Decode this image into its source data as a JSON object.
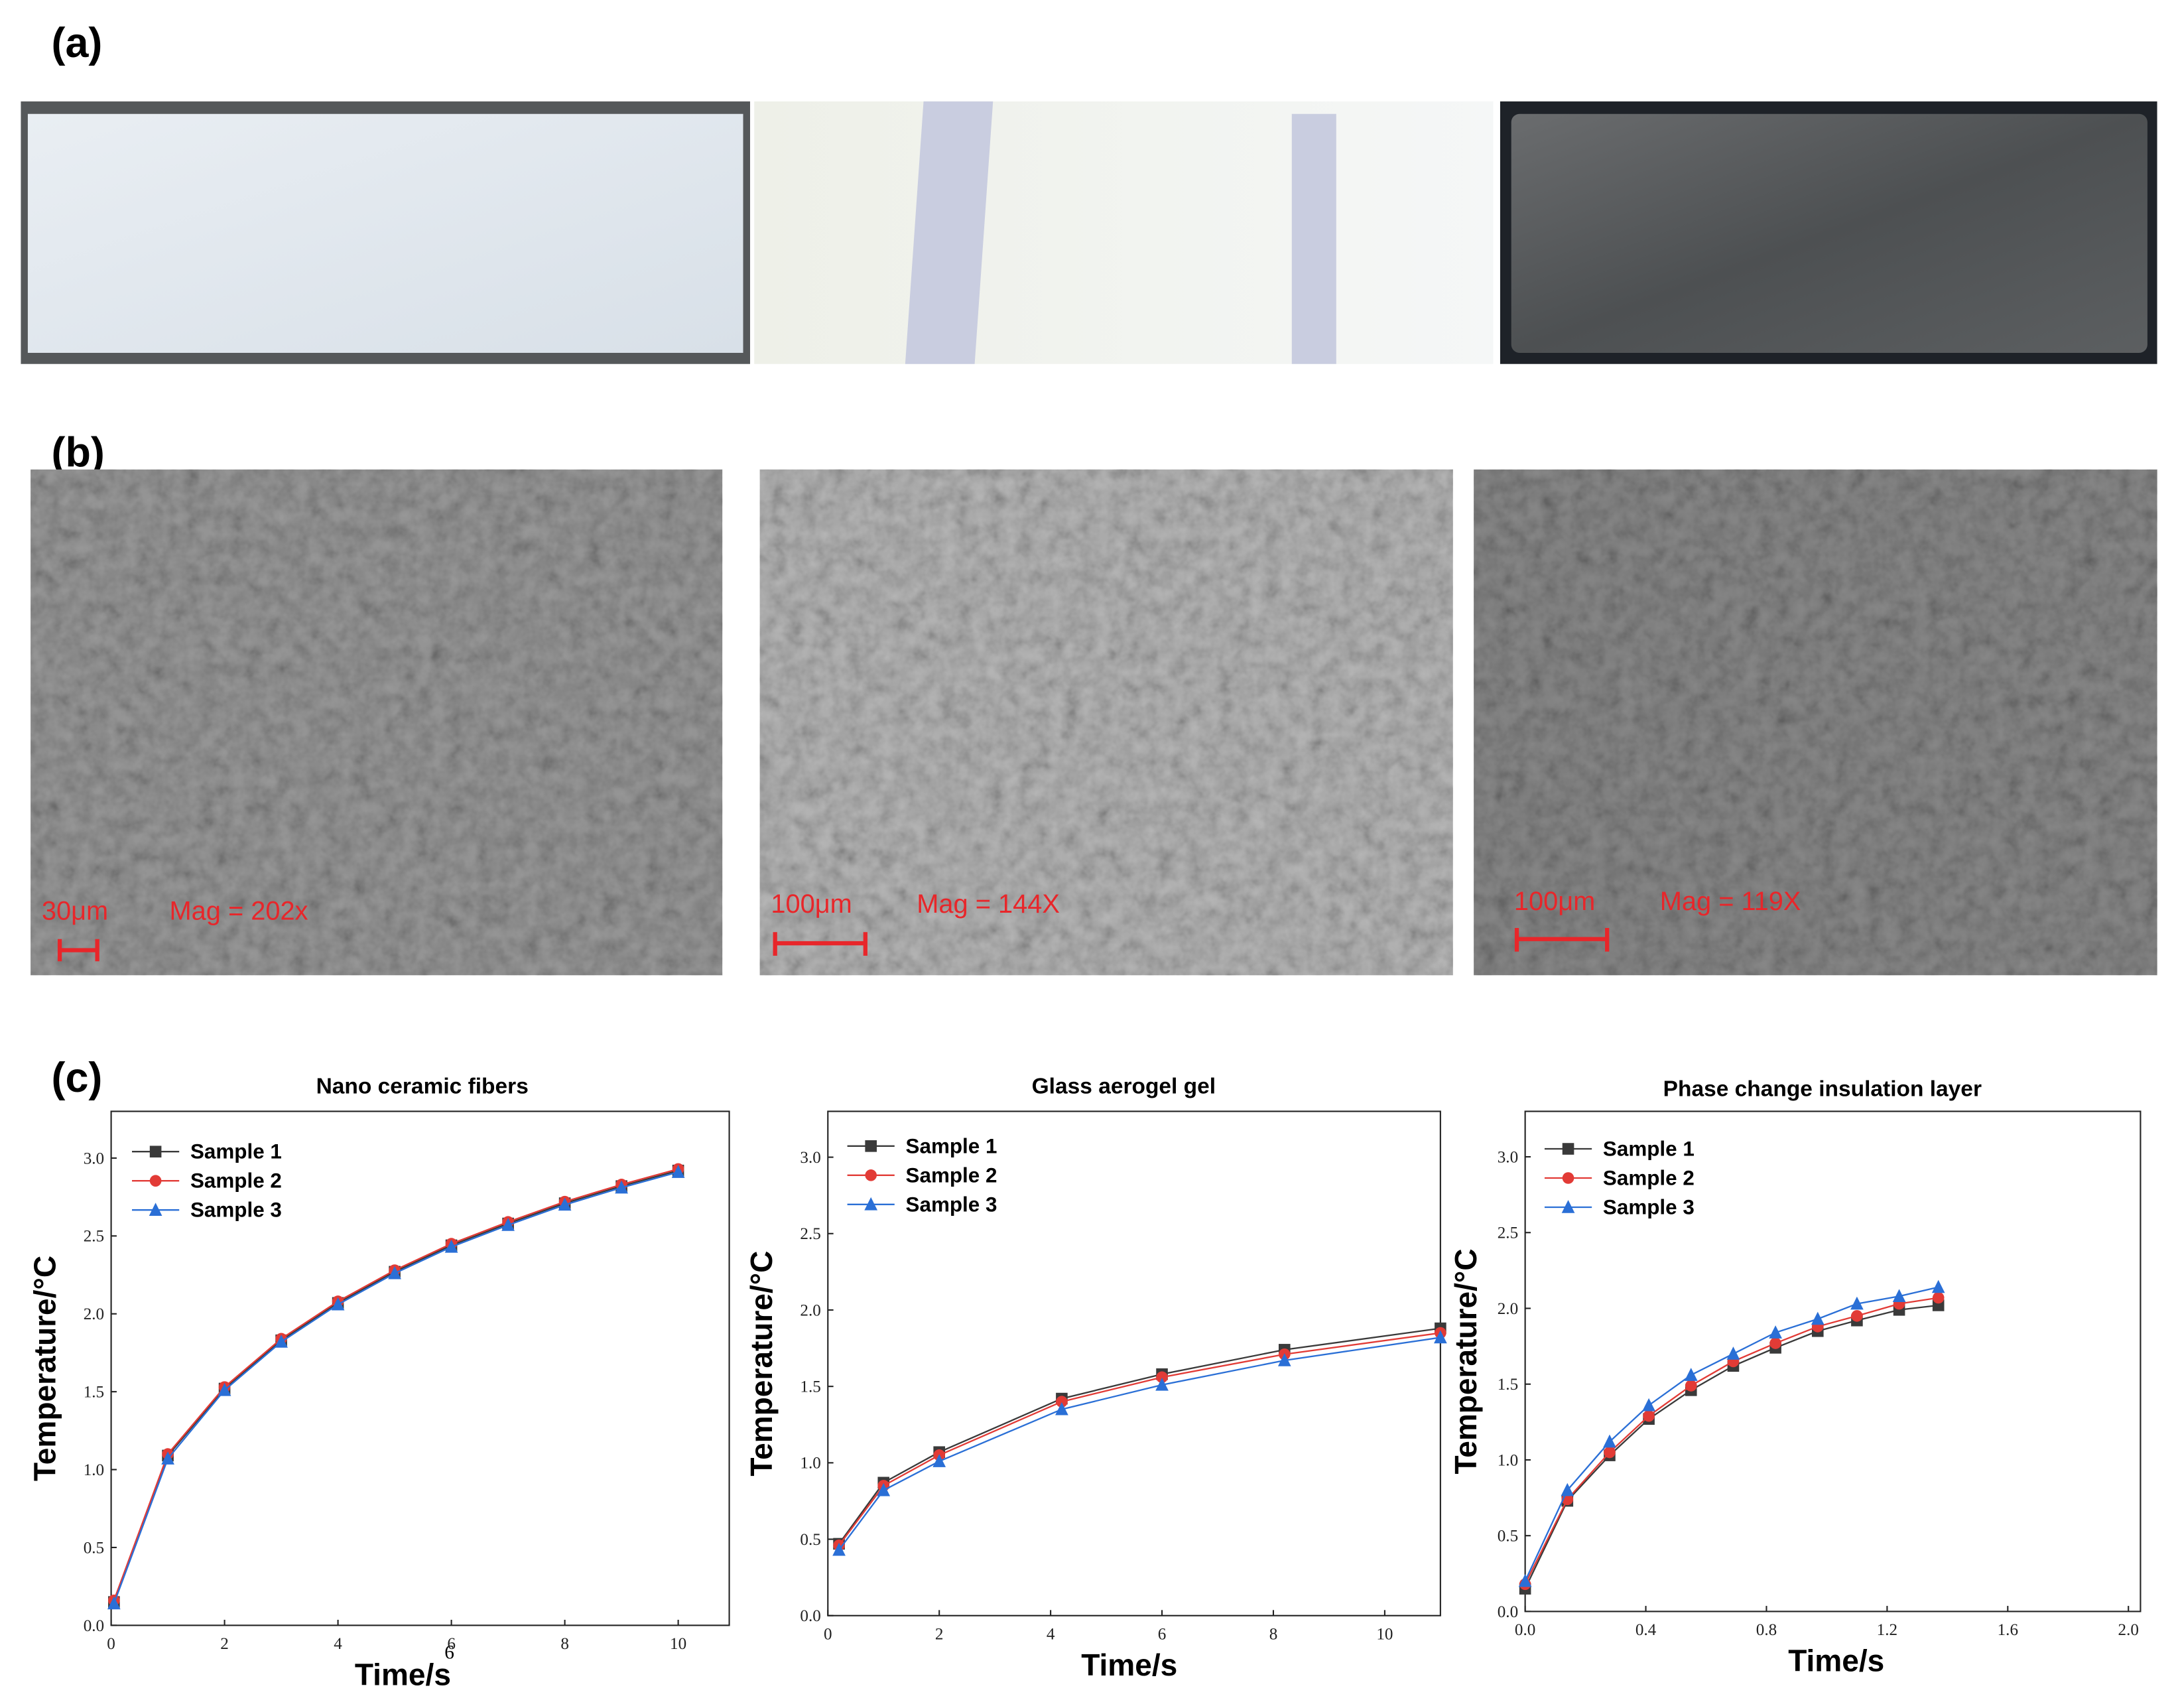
{
  "panels": {
    "a": "(a)",
    "b": "(b)",
    "c": "(c)"
  },
  "sem": [
    {
      "scale": "30μm",
      "mag": "Mag = 202x"
    },
    {
      "scale": "100μm",
      "mag": "Mag = 144X"
    },
    {
      "scale": "100μm",
      "mag": "Mag = 119X"
    }
  ],
  "footnote_mark": "6",
  "chart_data": [
    {
      "type": "line",
      "title": "Nano ceramic fibers",
      "x_label": "Time/s",
      "y_label": "Temperature/°C",
      "x": [
        0.05,
        1,
        2,
        3,
        4,
        5,
        6,
        7,
        8,
        9,
        10
      ],
      "series": [
        {
          "name": "Sample 1",
          "color": "#3a3a3a",
          "marker": "square",
          "values": [
            0.15,
            1.09,
            1.52,
            1.83,
            2.07,
            2.27,
            2.44,
            2.58,
            2.71,
            2.82,
            2.92
          ]
        },
        {
          "name": "Sample 2",
          "color": "#e23b36",
          "marker": "circle",
          "values": [
            0.16,
            1.1,
            1.53,
            1.84,
            2.08,
            2.28,
            2.45,
            2.59,
            2.72,
            2.83,
            2.93
          ]
        },
        {
          "name": "Sample 3",
          "color": "#2a6fd6",
          "marker": "triangle",
          "values": [
            0.14,
            1.07,
            1.51,
            1.82,
            2.06,
            2.26,
            2.43,
            2.57,
            2.7,
            2.81,
            2.91
          ]
        }
      ],
      "xlim": [
        0,
        10.9
      ],
      "xticks": [
        0,
        2,
        4,
        6,
        8,
        10
      ],
      "ylim": [
        0,
        3.3
      ],
      "yticks": [
        {
          "value": 0,
          "label": "0.0"
        },
        0.5,
        {
          "value": 1,
          "label": "1.0"
        },
        1.5,
        {
          "value": 2,
          "label": "2.0"
        },
        2.5,
        {
          "value": 3,
          "label": "3.0"
        }
      ]
    },
    {
      "type": "line",
      "title": "Glass aerogel gel",
      "x_label": "Time/s",
      "y_label": "Temperature/°C",
      "x": [
        0.2,
        1,
        2,
        4.2,
        6,
        8.2,
        11
      ],
      "series": [
        {
          "name": "Sample 1",
          "color": "#3a3a3a",
          "marker": "square",
          "values": [
            0.47,
            0.87,
            1.07,
            1.42,
            1.58,
            1.74,
            1.88
          ]
        },
        {
          "name": "Sample 2",
          "color": "#e23b36",
          "marker": "circle",
          "values": [
            0.46,
            0.85,
            1.05,
            1.4,
            1.56,
            1.71,
            1.85
          ]
        },
        {
          "name": "Sample 3",
          "color": "#2a6fd6",
          "marker": "triangle",
          "values": [
            0.43,
            0.82,
            1.01,
            1.35,
            1.51,
            1.67,
            1.82
          ]
        }
      ],
      "xlim": [
        0,
        11
      ],
      "xticks": [
        0,
        2,
        4,
        6,
        8,
        10
      ],
      "ylim": [
        0,
        3.3
      ],
      "yticks": [
        {
          "value": 0,
          "label": "0.0"
        },
        0.5,
        {
          "value": 1,
          "label": "1.0"
        },
        1.5,
        {
          "value": 2,
          "label": "2.0"
        },
        2.5,
        {
          "value": 3,
          "label": "3.0"
        }
      ]
    },
    {
      "type": "line",
      "title": "Phase change insulation layer",
      "x_label": "Time/s",
      "y_label": "Temperature/°C",
      "x": [
        0,
        0.14,
        0.28,
        0.41,
        0.55,
        0.69,
        0.83,
        0.97,
        1.1,
        1.24,
        1.37
      ],
      "series": [
        {
          "name": "Sample 1",
          "color": "#3a3a3a",
          "marker": "square",
          "values": [
            0.15,
            0.73,
            1.03,
            1.27,
            1.46,
            1.62,
            1.74,
            1.85,
            1.92,
            1.99,
            2.02
          ]
        },
        {
          "name": "Sample 2",
          "color": "#e23b36",
          "marker": "circle",
          "values": [
            0.18,
            0.74,
            1.05,
            1.29,
            1.49,
            1.65,
            1.77,
            1.88,
            1.95,
            2.03,
            2.07
          ]
        },
        {
          "name": "Sample 3",
          "color": "#2a6fd6",
          "marker": "triangle",
          "values": [
            0.2,
            0.8,
            1.12,
            1.36,
            1.56,
            1.7,
            1.84,
            1.93,
            2.03,
            2.08,
            2.14
          ]
        }
      ],
      "xlim": [
        0,
        2.04
      ],
      "xticks": [
        {
          "value": 0,
          "label": "0.0"
        },
        0.4,
        0.8,
        1.2,
        1.6,
        {
          "value": 2,
          "label": "2.0"
        }
      ],
      "ylim": [
        0,
        3.3
      ],
      "yticks": [
        {
          "value": 0,
          "label": "0.0"
        },
        0.5,
        {
          "value": 1,
          "label": "1.0"
        },
        1.5,
        {
          "value": 2,
          "label": "2.0"
        },
        2.5,
        {
          "value": 3,
          "label": "3.0"
        }
      ]
    }
  ]
}
